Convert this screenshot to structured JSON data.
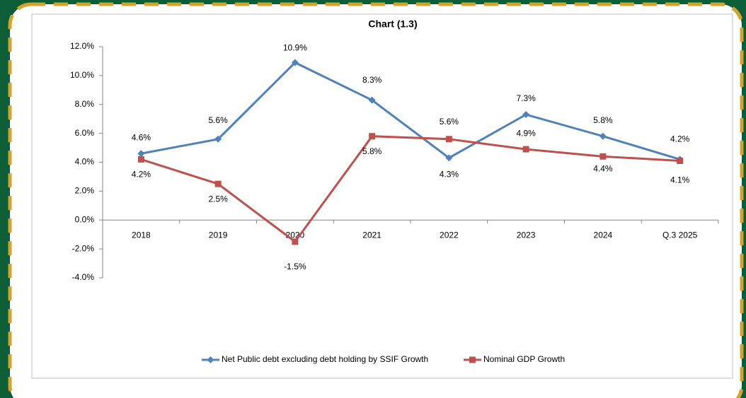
{
  "chart_data": {
    "type": "line",
    "title": "Chart (1.3)",
    "categories": [
      "2018",
      "2019",
      "2020",
      "2021",
      "2022",
      "2023",
      "2024",
      "Q.3 2025"
    ],
    "series": [
      {
        "name": "Net Public debt excluding debt holding by SSIF Growth",
        "color": "#4f81bd",
        "values": [
          4.6,
          5.6,
          10.9,
          8.3,
          4.3,
          7.3,
          5.8,
          4.2
        ],
        "value_labels": [
          "4.6%",
          "5.6%",
          "10.9%",
          "8.3%",
          "4.3%",
          "7.3%",
          "5.8%",
          "4.2%"
        ]
      },
      {
        "name": "Nominal GDP Growth",
        "color": "#c0504d",
        "values": [
          4.2,
          2.5,
          -1.5,
          5.8,
          5.6,
          4.9,
          4.4,
          4.1
        ],
        "value_labels": [
          "4.2%",
          "2.5%",
          "-1.5%",
          "5.8%",
          "5.6%",
          "4.9%",
          "4.4%",
          "4.1%"
        ]
      }
    ],
    "ylim": [
      -4,
      12
    ],
    "yticks": [
      {
        "value": -4,
        "label": "-4.0%"
      },
      {
        "value": -2,
        "label": "-2.0%"
      },
      {
        "value": 0,
        "label": "0.0%"
      },
      {
        "value": 2,
        "label": "2.0%"
      },
      {
        "value": 4,
        "label": "4.0%"
      },
      {
        "value": 6,
        "label": "6.0%"
      },
      {
        "value": 8,
        "label": "8.0%"
      },
      {
        "value": 10,
        "label": "10.0%"
      },
      {
        "value": 12,
        "label": "12.0%"
      }
    ],
    "legend": "bottom"
  }
}
